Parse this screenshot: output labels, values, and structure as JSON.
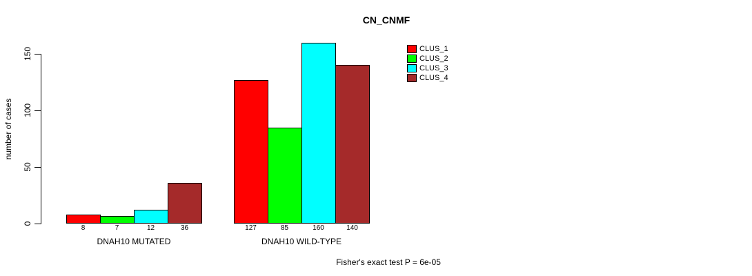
{
  "chart_data": {
    "type": "bar",
    "title": "CN_CNMF",
    "ylabel": "number of cases",
    "xlabel": "",
    "categories": [
      "DNAH10 MUTATED",
      "DNAH10 WILD-TYPE"
    ],
    "series": [
      {
        "name": "CLUS_1",
        "color": "#ff0000",
        "values": [
          8,
          127
        ]
      },
      {
        "name": "CLUS_2",
        "color": "#00ff00",
        "values": [
          7,
          85
        ]
      },
      {
        "name": "CLUS_3",
        "color": "#00ffff",
        "values": [
          12,
          160
        ]
      },
      {
        "name": "CLUS_4",
        "color": "#a52a2a",
        "values": [
          36,
          140
        ]
      }
    ],
    "yticks": [
      0,
      50,
      100,
      150
    ],
    "ylim": [
      0,
      160
    ],
    "grid": false,
    "legend_position": "top-right",
    "bar_border_color": "#000000",
    "background_color": "#ffffff",
    "annotation": "Fisher's exact test P = 6e-05"
  }
}
